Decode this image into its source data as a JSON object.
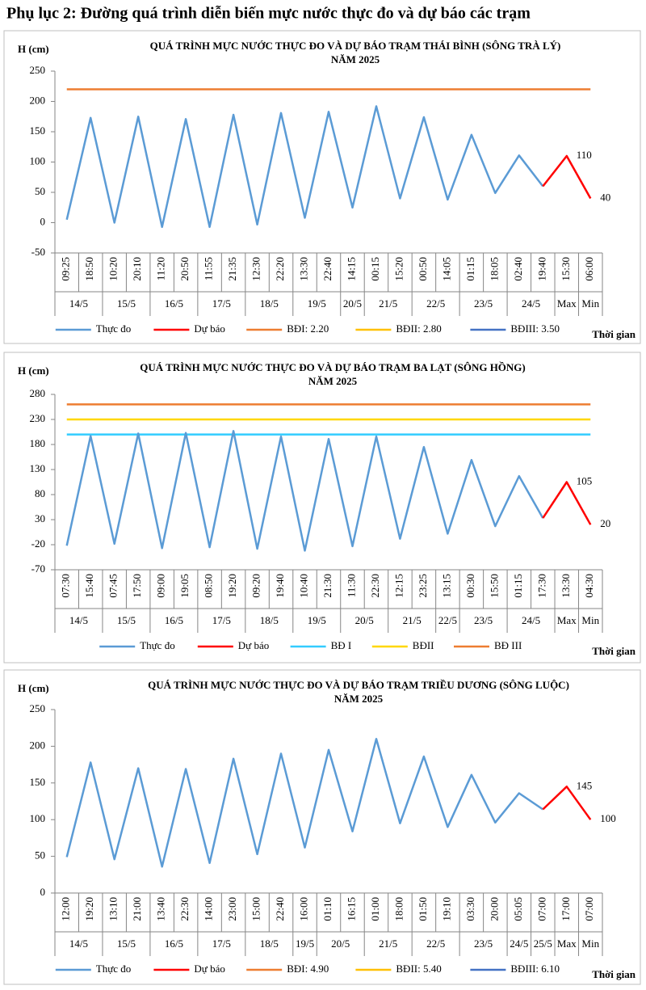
{
  "title": "Phụ lục 2: Đường quá trình diễn biến mực nước thực đo và dự báo các trạm",
  "chart_data": [
    {
      "type": "line",
      "title": "QUÁ TRÌNH MỰC NƯỚC THỰC ĐO VÀ DỰ BÁO TRẠM THÁI BÌNH (SÔNG TRÀ LÝ)",
      "subtitle": "NĂM 2025",
      "y_label": "H (cm)",
      "x_label": "Thời gian",
      "categories": [
        "09:25",
        "18:50",
        "10:20",
        "20:10",
        "11:20",
        "20:50",
        "11:55",
        "21:35",
        "12:30",
        "22:20",
        "13:30",
        "22:40",
        "14:15",
        "00:15",
        "15:20",
        "00:50",
        "14:05",
        "01:15",
        "18:05",
        "02:40",
        "19:40",
        "15:30",
        "06:00"
      ],
      "dates": [
        "14/5",
        "14/5",
        "15/5",
        "15/5",
        "16/5",
        "16/5",
        "17/5",
        "17/5",
        "18/5",
        "18/5",
        "19/5",
        "19/5",
        "20/5",
        "21/5",
        "21/5",
        "22/5",
        "22/5",
        "23/5",
        "23/5",
        "24/5",
        "24/5",
        "Max",
        "Min"
      ],
      "ylim": [
        -50,
        250
      ],
      "yticks": [
        -50,
        0,
        50,
        100,
        150,
        200,
        250
      ],
      "series": [
        {
          "name": "Thực đo",
          "color": "#5b9bd5",
          "values": [
            5,
            173,
            0,
            175,
            -7,
            171,
            -7,
            178,
            -3,
            181,
            8,
            183,
            25,
            192,
            40,
            174,
            38,
            145,
            49,
            111,
            60,
            null,
            null
          ]
        },
        {
          "name": "Dự báo",
          "color": "#ff0000",
          "values": [
            null,
            null,
            null,
            null,
            null,
            null,
            null,
            null,
            null,
            null,
            null,
            null,
            null,
            null,
            null,
            null,
            null,
            null,
            null,
            null,
            60,
            110,
            40
          ],
          "value_labels": [
            null,
            null,
            null,
            null,
            null,
            null,
            null,
            null,
            null,
            null,
            null,
            null,
            null,
            null,
            null,
            null,
            null,
            null,
            null,
            null,
            null,
            "110",
            "40"
          ]
        }
      ],
      "levels": [
        {
          "name": "BĐI: 2.20",
          "color": "#ed7d31",
          "value": 220
        },
        {
          "name": "BĐII: 2.80",
          "color": "#ffc000",
          "value": 280
        },
        {
          "name": "BĐIII: 3.50",
          "color": "#4472c4",
          "value": 350
        }
      ]
    },
    {
      "type": "line",
      "title": "QUÁ TRÌNH MỰC NƯỚC THỰC ĐO VÀ DỰ BÁO TRẠM BA LẠT (SÔNG HỒNG)",
      "subtitle": "NĂM 2025",
      "y_label": "H (cm)",
      "x_label": "Thời gian",
      "categories": [
        "07:30",
        "15:40",
        "07:45",
        "17:50",
        "09:00",
        "19:05",
        "08:50",
        "19:20",
        "09:20",
        "19:40",
        "10:40",
        "21:30",
        "11:30",
        "22:30",
        "12:15",
        "23:25",
        "13:15",
        "00:30",
        "15:50",
        "01:15",
        "17:30",
        "13:30",
        "04:30"
      ],
      "dates": [
        "14/5",
        "14/5",
        "15/5",
        "15/5",
        "16/5",
        "16/5",
        "17/5",
        "17/5",
        "18/5",
        "18/5",
        "19/5",
        "19/5",
        "20/5",
        "20/5",
        "21/5",
        "21/5",
        "22/5",
        "23/5",
        "23/5",
        "24/5",
        "24/5",
        "Max",
        "Min"
      ],
      "ylim": [
        -70,
        280
      ],
      "yticks": [
        -70,
        -20,
        30,
        80,
        130,
        180,
        230,
        280
      ],
      "series": [
        {
          "name": "Thực đo",
          "color": "#5b9bd5",
          "values": [
            -22,
            197,
            -18,
            202,
            -27,
            203,
            -25,
            207,
            -28,
            196,
            -32,
            191,
            -23,
            196,
            -8,
            175,
            2,
            149,
            17,
            117,
            33,
            null,
            null
          ]
        },
        {
          "name": "Dự báo",
          "color": "#ff0000",
          "values": [
            null,
            null,
            null,
            null,
            null,
            null,
            null,
            null,
            null,
            null,
            null,
            null,
            null,
            null,
            null,
            null,
            null,
            null,
            null,
            null,
            33,
            105,
            20
          ],
          "value_labels": [
            null,
            null,
            null,
            null,
            null,
            null,
            null,
            null,
            null,
            null,
            null,
            null,
            null,
            null,
            null,
            null,
            null,
            null,
            null,
            null,
            null,
            "105",
            "20"
          ]
        }
      ],
      "levels": [
        {
          "name": "BĐ I",
          "color": "#33ccff",
          "value": 200
        },
        {
          "name": "BĐII",
          "color": "#ffd700",
          "value": 230
        },
        {
          "name": "BĐ III",
          "color": "#ed7d31",
          "value": 260
        }
      ]
    },
    {
      "type": "line",
      "title": "QUÁ TRÌNH MỰC NƯỚC THỰC ĐO VÀ DỰ BÁO TRẠM TRIỀU DƯƠNG  (SÔNG LUỘC)",
      "subtitle": "NĂM 2025",
      "y_label": "H (cm)",
      "x_label": "Thời gian",
      "categories": [
        "12:00",
        "19:20",
        "13:10",
        "21:00",
        "13:40",
        "22:30",
        "14:00",
        "23:00",
        "15:00",
        "22:40",
        "16:00",
        "01:10",
        "16:15",
        "01:00",
        "18:00",
        "01:50",
        "19:10",
        "03:30",
        "20:00",
        "05:05",
        "07:00",
        "17:00",
        "07:00"
      ],
      "dates": [
        "14/5",
        "14/5",
        "15/5",
        "15/5",
        "16/5",
        "16/5",
        "17/5",
        "17/5",
        "18/5",
        "18/5",
        "19/5",
        "20/5",
        "20/5",
        "21/5",
        "21/5",
        "22/5",
        "22/5",
        "23/5",
        "23/5",
        "24/5",
        "25/5",
        "Max",
        "Min"
      ],
      "ylim": [
        0,
        250
      ],
      "yticks": [
        0,
        50,
        100,
        150,
        200,
        250
      ],
      "series": [
        {
          "name": "Thực đo",
          "color": "#5b9bd5",
          "values": [
            49,
            178,
            46,
            170,
            36,
            169,
            41,
            183,
            53,
            190,
            62,
            195,
            84,
            210,
            95,
            186,
            90,
            161,
            96,
            136,
            114,
            null,
            null
          ]
        },
        {
          "name": "Dự báo",
          "color": "#ff0000",
          "values": [
            null,
            null,
            null,
            null,
            null,
            null,
            null,
            null,
            null,
            null,
            null,
            null,
            null,
            null,
            null,
            null,
            null,
            null,
            null,
            null,
            114,
            145,
            100
          ],
          "value_labels": [
            null,
            null,
            null,
            null,
            null,
            null,
            null,
            null,
            null,
            null,
            null,
            null,
            null,
            null,
            null,
            null,
            null,
            null,
            null,
            null,
            null,
            "145",
            "100"
          ]
        }
      ],
      "levels": [
        {
          "name": "BĐI: 4.90",
          "color": "#ed7d31",
          "value": 490
        },
        {
          "name": "BĐII: 5.40",
          "color": "#ffc000",
          "value": 540
        },
        {
          "name": "BĐIII: 6.10",
          "color": "#4472c4",
          "value": 610
        }
      ]
    }
  ]
}
